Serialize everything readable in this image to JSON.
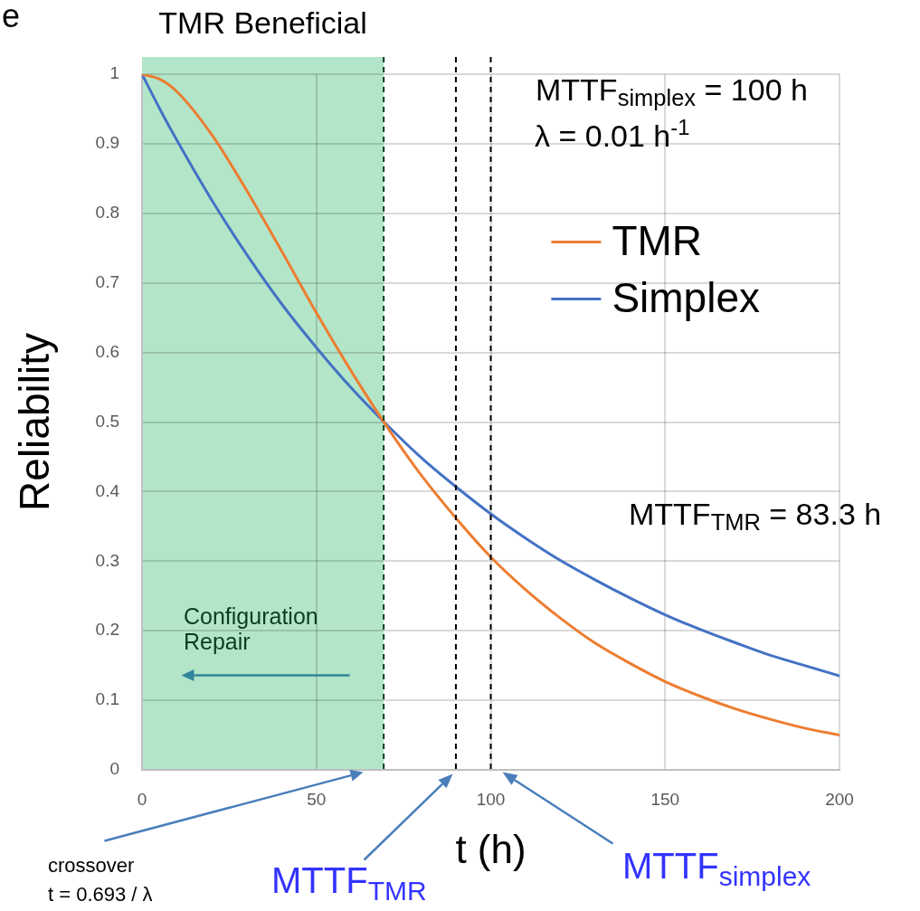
{
  "chart_data": {
    "type": "line",
    "xlabel": "t (h)",
    "ylabel": "Reliability",
    "x": [
      0,
      5,
      10,
      20,
      30,
      40,
      50,
      60,
      70,
      80,
      90,
      100,
      110,
      120,
      130,
      140,
      150,
      160,
      170,
      180,
      190,
      200
    ],
    "series": [
      {
        "name": "TMR",
        "color": "#ed7d31",
        "values": [
          1,
          0.993,
          0.975,
          0.913,
          0.833,
          0.746,
          0.657,
          0.573,
          0.495,
          0.424,
          0.362,
          0.306,
          0.259,
          0.218,
          0.182,
          0.153,
          0.127,
          0.106,
          0.088,
          0.073,
          0.06,
          0.05
        ]
      },
      {
        "name": "Simplex",
        "color": "#4472c4",
        "values": [
          1,
          0.951,
          0.905,
          0.819,
          0.741,
          0.67,
          0.607,
          0.549,
          0.497,
          0.449,
          0.407,
          0.368,
          0.333,
          0.301,
          0.273,
          0.247,
          0.223,
          0.202,
          0.183,
          0.165,
          0.15,
          0.135
        ]
      }
    ],
    "xlim": [
      0,
      200
    ],
    "xticks": [
      0,
      50,
      100,
      150,
      200
    ],
    "ylim": [
      0,
      1
    ],
    "yticks": [
      0,
      0.1,
      0.2,
      0.3,
      0.4,
      0.5,
      0.6,
      0.7,
      0.8,
      0.9,
      1
    ],
    "grid": true,
    "legend": "top right",
    "bands": [
      {
        "axis": "x",
        "from": 0,
        "to": 69.3,
        "label": "TMR Beneficial",
        "color": "#b3e6c9"
      }
    ],
    "ref_lines": [
      {
        "axis": "x",
        "value": 69.3,
        "color": "#0b3d20",
        "line_style": "dashed"
      },
      {
        "axis": "x",
        "value": 90,
        "color": "#000000",
        "line_style": "dashed"
      },
      {
        "axis": "x",
        "value": 100,
        "color": "#000000",
        "line_style": "dashed"
      }
    ],
    "annotations": [
      "e",
      "MTTF$_{simplex}$ = 100 h",
      "λ = 0.01 h$^{-1}$",
      "MTTF$_{TMR}$ = 83.3 h",
      "Configuration Repair",
      "crossover\nt = 0.693 / λ",
      "MTTF$_{TMR}$",
      "MTTF$_{simplex}$"
    ]
  }
}
